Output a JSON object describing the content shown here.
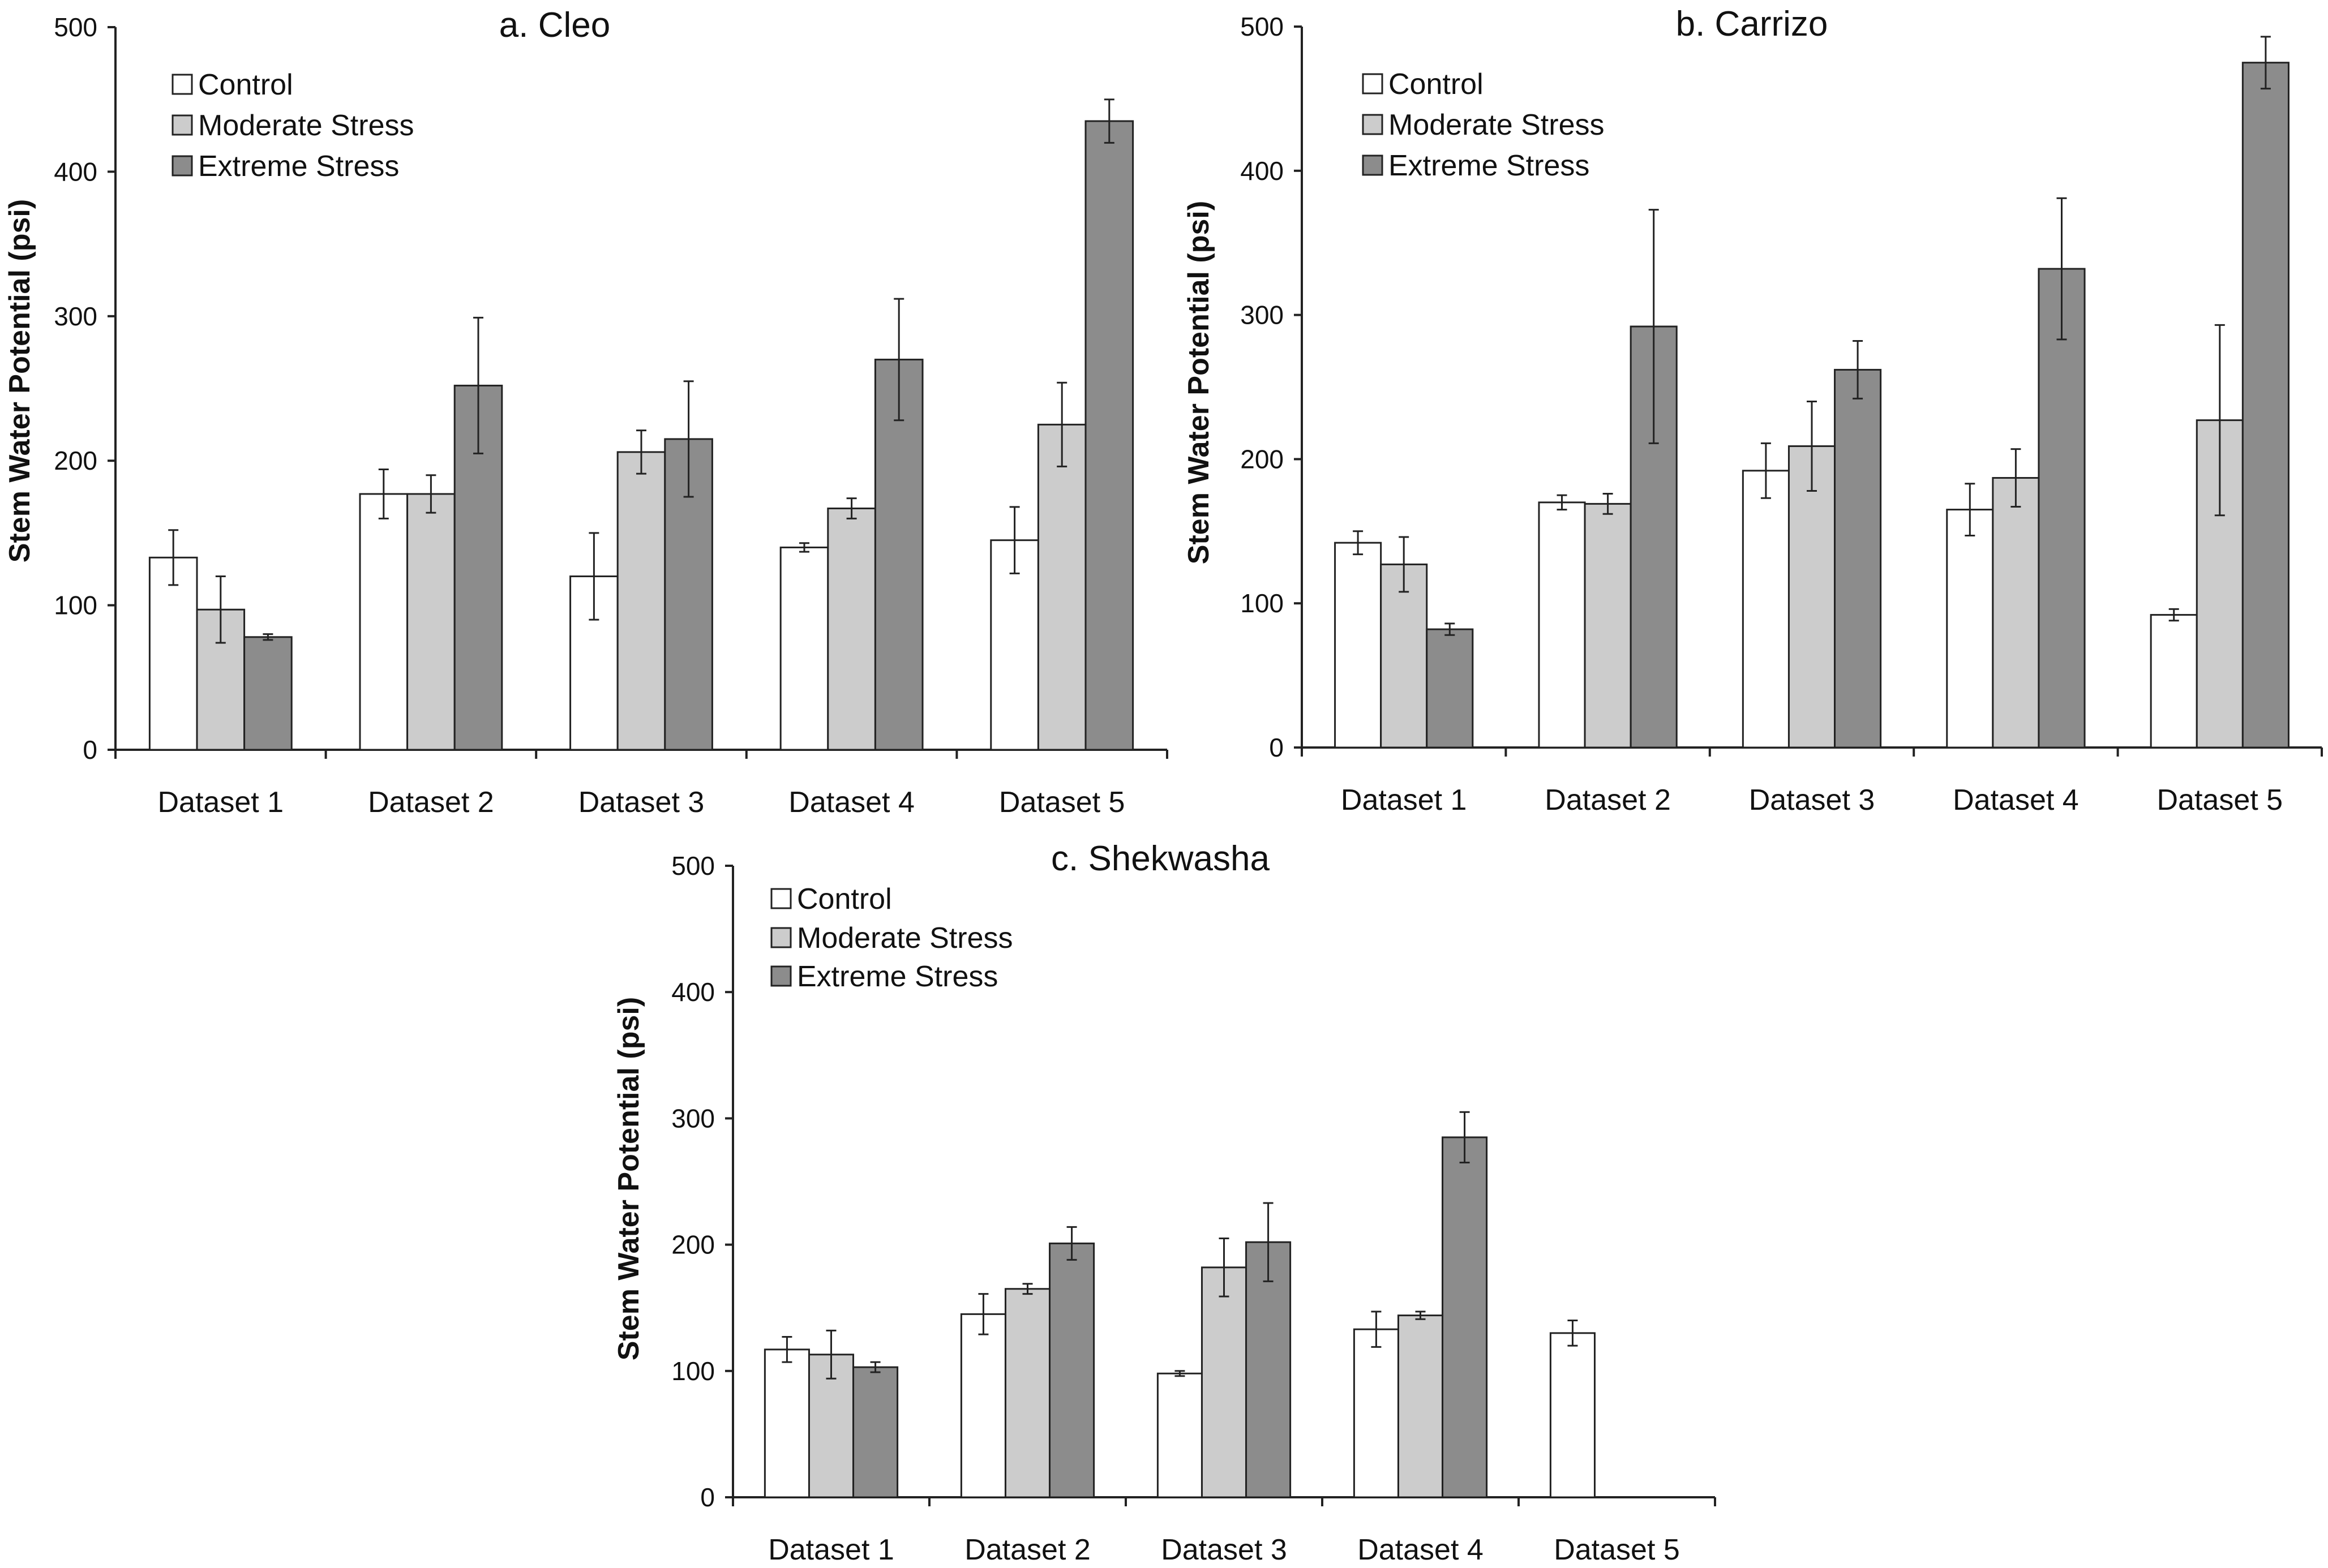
{
  "chart_data": [
    {
      "type": "bar",
      "title": "a. Cleo",
      "ylabel": "Stem Water Potential (psi)",
      "xlabel": "",
      "ylim": [
        0,
        500
      ],
      "yticks": [
        0,
        100,
        200,
        300,
        400,
        500
      ],
      "legend_position": "top-left",
      "categories": [
        "Dataset 1",
        "Dataset 2",
        "Dataset 3",
        "Dataset 4",
        "Dataset 5"
      ],
      "series": [
        {
          "name": "Control",
          "color": "#ffffff",
          "values": [
            133,
            177,
            120,
            140,
            145
          ],
          "errors": [
            19,
            17,
            30,
            3,
            23
          ]
        },
        {
          "name": "Moderate Stress",
          "color": "#cccccc",
          "values": [
            97,
            177,
            206,
            167,
            225
          ],
          "errors": [
            23,
            13,
            15,
            7,
            29
          ]
        },
        {
          "name": "Extreme Stress",
          "color": "#8c8c8c",
          "values": [
            78,
            252,
            215,
            270,
            435
          ],
          "errors": [
            2,
            47,
            40,
            42,
            15
          ]
        }
      ]
    },
    {
      "type": "bar",
      "title": "b. Carrizo",
      "ylabel": "Stem Water Potential (psi)",
      "xlabel": "",
      "ylim": [
        0,
        500
      ],
      "yticks": [
        0,
        100,
        200,
        300,
        400,
        500
      ],
      "legend_position": "top-left",
      "categories": [
        "Dataset 1",
        "Dataset 2",
        "Dataset 3",
        "Dataset 4",
        "Dataset 5"
      ],
      "series": [
        {
          "name": "Control",
          "color": "#ffffff",
          "values": [
            142,
            170,
            192,
            165,
            92
          ],
          "errors": [
            8,
            5,
            19,
            18,
            4
          ]
        },
        {
          "name": "Moderate Stress",
          "color": "#cccccc",
          "values": [
            127,
            169,
            209,
            187,
            227
          ],
          "errors": [
            19,
            7,
            31,
            20,
            66
          ]
        },
        {
          "name": "Extreme Stress",
          "color": "#8c8c8c",
          "values": [
            82,
            292,
            262,
            332,
            475
          ],
          "errors": [
            4,
            81,
            20,
            49,
            18
          ]
        }
      ]
    },
    {
      "type": "bar",
      "title": "c. Shekwasha",
      "ylabel": "Stem Water Potential (psi)",
      "xlabel": "",
      "ylim": [
        0,
        500
      ],
      "yticks": [
        0,
        100,
        200,
        300,
        400,
        500
      ],
      "legend_position": "top-left",
      "categories": [
        "Dataset 1",
        "Dataset 2",
        "Dataset 3",
        "Dataset 4",
        "Dataset 5"
      ],
      "series": [
        {
          "name": "Control",
          "color": "#ffffff",
          "values": [
            117,
            145,
            98,
            133,
            130
          ],
          "errors": [
            10,
            16,
            2,
            14,
            10
          ]
        },
        {
          "name": "Moderate Stress",
          "color": "#cccccc",
          "values": [
            113,
            165,
            182,
            144,
            0
          ],
          "errors": [
            19,
            4,
            23,
            3,
            0
          ]
        },
        {
          "name": "Extreme Stress",
          "color": "#8c8c8c",
          "values": [
            103,
            201,
            202,
            285,
            0
          ],
          "errors": [
            4,
            13,
            31,
            20,
            0
          ]
        }
      ]
    }
  ]
}
